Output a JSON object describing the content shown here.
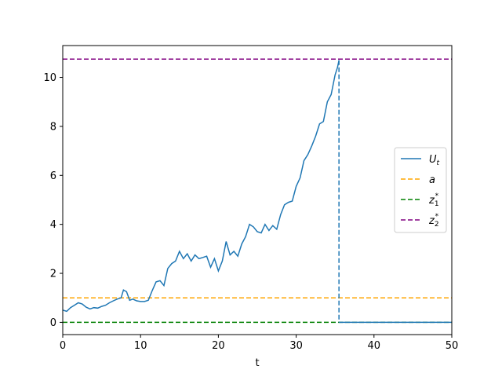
{
  "chart_data": {
    "type": "line",
    "title": "",
    "xlabel": "t",
    "ylabel": "",
    "xlim": [
      0,
      50
    ],
    "ylim": [
      -0.5,
      11.3
    ],
    "xticks": [
      0,
      10,
      20,
      30,
      40,
      50
    ],
    "yticks": [
      0,
      2,
      4,
      6,
      8,
      10
    ],
    "grid": false,
    "legend_position": "right",
    "series": [
      {
        "name": "U_t",
        "legend_label": "U",
        "legend_sub": "t",
        "color": "#1f77b4",
        "style": "solid",
        "x": [
          0,
          0.5,
          1,
          1.5,
          2,
          2.5,
          3,
          3.5,
          4,
          4.5,
          5,
          5.5,
          6,
          6.5,
          7,
          7.5,
          7.8,
          8.2,
          8.6,
          9,
          9.5,
          10,
          10.5,
          11,
          11.5,
          12,
          12.5,
          13,
          13.5,
          14,
          14.5,
          15,
          15.5,
          16,
          16.5,
          17,
          17.5,
          18,
          18.5,
          19,
          19.5,
          20,
          20.5,
          21,
          21.5,
          22,
          22.5,
          23,
          23.5,
          24,
          24.5,
          25,
          25.5,
          26,
          26.5,
          27,
          27.5,
          28,
          28.5,
          29,
          29.5,
          30,
          30.5,
          31,
          31.5,
          32,
          32.5,
          33,
          33.5,
          34,
          34.5,
          35,
          35.3,
          35.5
        ],
        "y": [
          0.5,
          0.45,
          0.6,
          0.7,
          0.8,
          0.75,
          0.62,
          0.55,
          0.6,
          0.58,
          0.65,
          0.7,
          0.8,
          0.88,
          0.95,
          1.0,
          1.32,
          1.25,
          0.9,
          0.95,
          0.88,
          0.85,
          0.85,
          0.9,
          1.3,
          1.65,
          1.7,
          1.5,
          2.2,
          2.4,
          2.5,
          2.9,
          2.6,
          2.8,
          2.5,
          2.75,
          2.6,
          2.65,
          2.7,
          2.25,
          2.6,
          2.1,
          2.5,
          3.3,
          2.75,
          2.9,
          2.7,
          3.2,
          3.5,
          4.0,
          3.9,
          3.7,
          3.65,
          4.0,
          3.75,
          3.95,
          3.8,
          4.4,
          4.8,
          4.9,
          4.95,
          5.55,
          5.9,
          6.6,
          6.85,
          7.2,
          7.6,
          8.1,
          8.2,
          9.0,
          9.3,
          10.1,
          10.4,
          10.7
        ]
      },
      {
        "name": "a",
        "legend_label": "a",
        "color": "#ffa500",
        "style": "dashed",
        "x": [
          0,
          50
        ],
        "y": [
          1,
          1
        ]
      },
      {
        "name": "z_1^*",
        "legend_label": "z",
        "legend_sub": "1",
        "legend_sup": "*",
        "color": "#008000",
        "style": "dashed",
        "x": [
          0,
          50
        ],
        "y": [
          0,
          0
        ]
      },
      {
        "name": "z_2^*",
        "legend_label": "z",
        "legend_sub": "2",
        "legend_sup": "*",
        "color": "#800080",
        "style": "dashed",
        "x": [
          0,
          50
        ],
        "y": [
          10.75,
          10.75
        ]
      }
    ],
    "annotations": {
      "stop_line": {
        "x": 35.5,
        "y_from": 10.7,
        "y_to": 0,
        "color": "#1f77b4",
        "style": "dashed"
      },
      "post_stop": {
        "x": [
          35.5,
          50
        ],
        "y": [
          0,
          0
        ],
        "color": "#1f77b4",
        "style": "solid"
      }
    }
  }
}
